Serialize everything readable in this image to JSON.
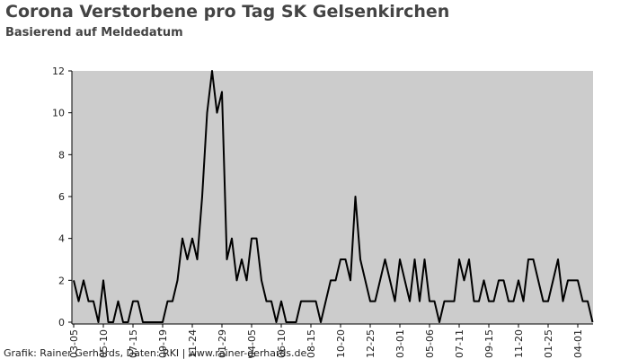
{
  "chart_data": {
    "type": "line",
    "title": "Corona Verstorbene pro Tag SK Gelsenkirchen",
    "subtitle": "Basierend auf Meldedatum",
    "footer": "Grafik: Rainer Gerhards, Daten: RKI | www.rainer-gerhards.de",
    "categories": [
      "03-05",
      null,
      null,
      null,
      null,
      null,
      "05-10",
      null,
      null,
      null,
      null,
      null,
      "07-15",
      null,
      null,
      null,
      null,
      null,
      "09-19",
      null,
      null,
      null,
      null,
      null,
      "11-24",
      null,
      null,
      null,
      null,
      null,
      "01-29",
      null,
      null,
      null,
      null,
      null,
      "04-05",
      null,
      null,
      null,
      null,
      null,
      "06-10",
      null,
      null,
      null,
      null,
      null,
      "08-15",
      null,
      null,
      null,
      null,
      null,
      "10-20",
      null,
      null,
      null,
      null,
      null,
      "12-25",
      null,
      null,
      null,
      null,
      null,
      "03-01",
      null,
      null,
      null,
      null,
      null,
      "05-06",
      null,
      null,
      null,
      null,
      null,
      "07-11",
      null,
      null,
      null,
      null,
      null,
      "09-15",
      null,
      null,
      null,
      null,
      null,
      "11-20",
      null,
      null,
      null,
      null,
      null,
      "01-25",
      null,
      null,
      null,
      null,
      null,
      "04-01",
      null,
      null,
      null
    ],
    "values": [
      2,
      1,
      2,
      1,
      1,
      0,
      2,
      0,
      0,
      1,
      0,
      0,
      1,
      1,
      0,
      0,
      0,
      0,
      0,
      1,
      1,
      2,
      4,
      3,
      4,
      3,
      6,
      10,
      12,
      10,
      11,
      3,
      4,
      2,
      3,
      2,
      4,
      4,
      2,
      1,
      1,
      0,
      1,
      0,
      0,
      0,
      1,
      1,
      1,
      1,
      0,
      1,
      2,
      2,
      3,
      3,
      2,
      6,
      3,
      2,
      1,
      1,
      2,
      3,
      2,
      1,
      3,
      2,
      1,
      3,
      1,
      3,
      1,
      1,
      0,
      1,
      1,
      1,
      3,
      2,
      3,
      1,
      1,
      2,
      1,
      1,
      2,
      2,
      1,
      1,
      2,
      1,
      3,
      3,
      2,
      1,
      1,
      2,
      3,
      1,
      2,
      2,
      2,
      1,
      1,
      0
    ],
    "color": "#000000",
    "ylim": [
      0,
      12
    ],
    "yticks": [
      0,
      2,
      4,
      6,
      8,
      10,
      12
    ]
  }
}
